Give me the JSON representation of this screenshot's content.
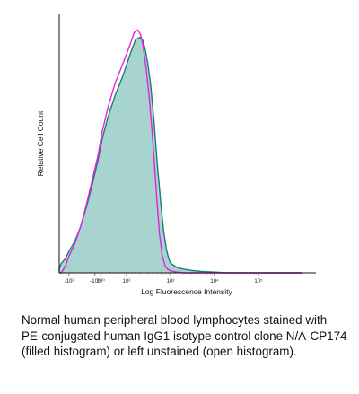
{
  "chart_data": {
    "type": "area",
    "xlabel": "Log Fluorescence Intensity",
    "ylabel": "Relative Cell Count",
    "xscale": "biexponential",
    "xlim": [
      -300,
      1000000
    ],
    "ylim": [
      0,
      1.05
    ],
    "grid": false,
    "legend": "none",
    "tick_labels": [
      {
        "value": -100,
        "label": "-10²"
      },
      {
        "value": -10,
        "label": "-10⁰"
      },
      {
        "value": 10,
        "label": "10⁰"
      },
      {
        "value": 100,
        "label": "10²"
      },
      {
        "value": 1000,
        "label": "10³"
      },
      {
        "value": 10000,
        "label": "10⁴"
      },
      {
        "value": 100000,
        "label": "10⁵"
      }
    ],
    "series": [
      {
        "style": "filled",
        "fill": "#a8d4d0",
        "stroke": "#1e7d78",
        "x": [
          -300,
          -200,
          -150,
          -120,
          -100,
          -80,
          -60,
          -40,
          -20,
          0,
          15,
          35,
          60,
          90,
          120,
          160,
          200,
          230,
          260,
          300,
          350,
          420,
          500,
          600,
          700,
          800,
          900,
          1000,
          1200,
          1500,
          2000,
          3000,
          5000,
          10000,
          20000,
          100000,
          1000000
        ],
        "y": [
          0.0,
          0.02,
          0.04,
          0.06,
          0.09,
          0.13,
          0.19,
          0.27,
          0.36,
          0.46,
          0.55,
          0.64,
          0.73,
          0.82,
          0.9,
          0.96,
          0.97,
          0.96,
          0.93,
          0.87,
          0.78,
          0.63,
          0.45,
          0.29,
          0.17,
          0.1,
          0.06,
          0.04,
          0.03,
          0.02,
          0.015,
          0.01,
          0.006,
          0.003,
          0.0,
          0.0,
          0.0
        ]
      },
      {
        "style": "open",
        "stroke": "#e81ee0",
        "x": [
          -300,
          -150,
          -120,
          -100,
          -80,
          -60,
          -40,
          -20,
          0,
          15,
          35,
          60,
          90,
          120,
          150,
          180,
          210,
          240,
          280,
          330,
          400,
          480,
          560,
          650,
          750,
          850,
          1000,
          1300,
          2000,
          1000000
        ],
        "y": [
          0.0,
          0.0,
          0.03,
          0.07,
          0.12,
          0.19,
          0.28,
          0.38,
          0.48,
          0.58,
          0.68,
          0.78,
          0.87,
          0.94,
          0.99,
          1.0,
          0.98,
          0.93,
          0.84,
          0.72,
          0.53,
          0.32,
          0.16,
          0.07,
          0.03,
          0.015,
          0.008,
          0.004,
          0.0,
          0.0
        ]
      }
    ]
  },
  "caption": {
    "lines": [
      "Normal human peripheral blood lymphocytes stained with",
      "PE-conjugated human IgG1 isotype control clone N/A-CP174",
      "(filled histogram) or left unstained (open histogram)."
    ]
  }
}
